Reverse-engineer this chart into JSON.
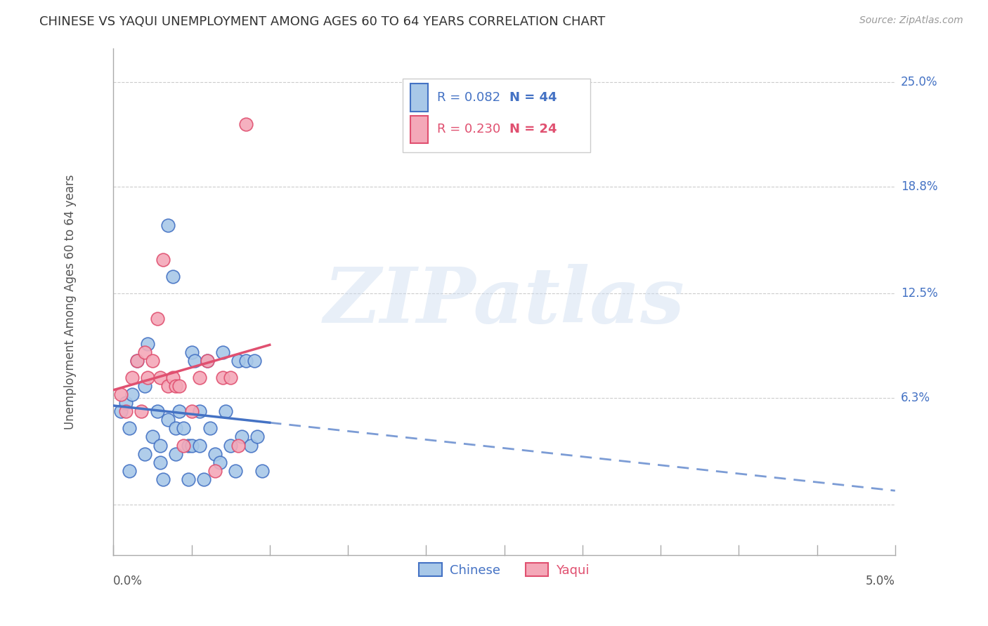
{
  "title": "CHINESE VS YAQUI UNEMPLOYMENT AMONG AGES 60 TO 64 YEARS CORRELATION CHART",
  "source": "Source: ZipAtlas.com",
  "ylabel": "Unemployment Among Ages 60 to 64 years",
  "xlim": [
    0.0,
    5.0
  ],
  "ylim": [
    -3.0,
    27.0
  ],
  "ytick_vals": [
    0.0,
    6.3,
    12.5,
    18.8,
    25.0
  ],
  "ytick_labels": [
    "",
    "6.3%",
    "12.5%",
    "18.8%",
    "25.0%"
  ],
  "chinese_color": "#a8c8e8",
  "yaqui_color": "#f4a8b8",
  "chinese_line_color": "#4472c4",
  "yaqui_line_color": "#e05070",
  "watermark_text": "ZIPatlas",
  "bg_color": "#ffffff",
  "grid_color": "#cccccc",
  "chinese_x": [
    0.05,
    0.08,
    0.1,
    0.1,
    0.12,
    0.15,
    0.2,
    0.2,
    0.22,
    0.25,
    0.28,
    0.3,
    0.3,
    0.32,
    0.35,
    0.35,
    0.38,
    0.4,
    0.4,
    0.42,
    0.45,
    0.48,
    0.48,
    0.5,
    0.5,
    0.52,
    0.55,
    0.55,
    0.58,
    0.6,
    0.62,
    0.65,
    0.68,
    0.7,
    0.72,
    0.75,
    0.78,
    0.8,
    0.82,
    0.85,
    0.88,
    0.9,
    0.92,
    0.95
  ],
  "chinese_y": [
    5.5,
    6.0,
    4.5,
    2.0,
    6.5,
    8.5,
    7.0,
    3.0,
    9.5,
    4.0,
    5.5,
    3.5,
    2.5,
    1.5,
    16.5,
    5.0,
    13.5,
    4.5,
    3.0,
    5.5,
    4.5,
    3.5,
    1.5,
    9.0,
    3.5,
    8.5,
    5.5,
    3.5,
    1.5,
    8.5,
    4.5,
    3.0,
    2.5,
    9.0,
    5.5,
    3.5,
    2.0,
    8.5,
    4.0,
    8.5,
    3.5,
    8.5,
    4.0,
    2.0
  ],
  "yaqui_x": [
    0.05,
    0.08,
    0.12,
    0.15,
    0.18,
    0.2,
    0.22,
    0.25,
    0.28,
    0.3,
    0.32,
    0.35,
    0.38,
    0.4,
    0.42,
    0.45,
    0.5,
    0.55,
    0.6,
    0.65,
    0.7,
    0.75,
    0.8,
    0.85
  ],
  "yaqui_y": [
    6.5,
    5.5,
    7.5,
    8.5,
    5.5,
    9.0,
    7.5,
    8.5,
    11.0,
    7.5,
    14.5,
    7.0,
    7.5,
    7.0,
    7.0,
    3.5,
    5.5,
    7.5,
    8.5,
    2.0,
    7.5,
    7.5,
    3.5,
    22.5
  ],
  "chinese_R": 0.082,
  "chinese_N": 44,
  "yaqui_R": 0.23,
  "yaqui_N": 24,
  "legend_box_color": "#cccccc",
  "xtick_positions": [
    0.0,
    0.5,
    1.0,
    1.5,
    2.0,
    2.5,
    3.0,
    3.5,
    4.0,
    4.5,
    5.0
  ]
}
